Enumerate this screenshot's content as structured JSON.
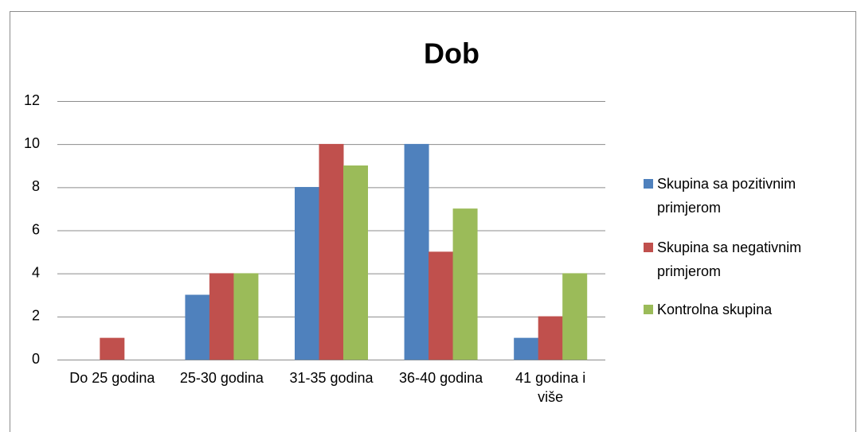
{
  "chart_data": {
    "type": "bar",
    "title": "Dob",
    "categories": [
      "Do 25 godina",
      "25-30 godina",
      "31-35 godina",
      "36-40 godina",
      "41 godina i više"
    ],
    "series": [
      {
        "name": "Skupina sa pozitivnim primjerom",
        "color": "#4f81bd",
        "values": [
          0,
          3,
          8,
          10,
          1
        ]
      },
      {
        "name": "Skupina sa negativnim primjerom",
        "color": "#c0504d",
        "values": [
          1,
          4,
          10,
          5,
          2
        ]
      },
      {
        "name": "Kontrolna skupina",
        "color": "#9bbb59",
        "values": [
          0,
          4,
          9,
          7,
          4
        ]
      }
    ],
    "ylim": [
      0,
      12
    ],
    "yticks": [
      0,
      2,
      4,
      6,
      8,
      10,
      12
    ],
    "grid": true,
    "legend": "right"
  }
}
